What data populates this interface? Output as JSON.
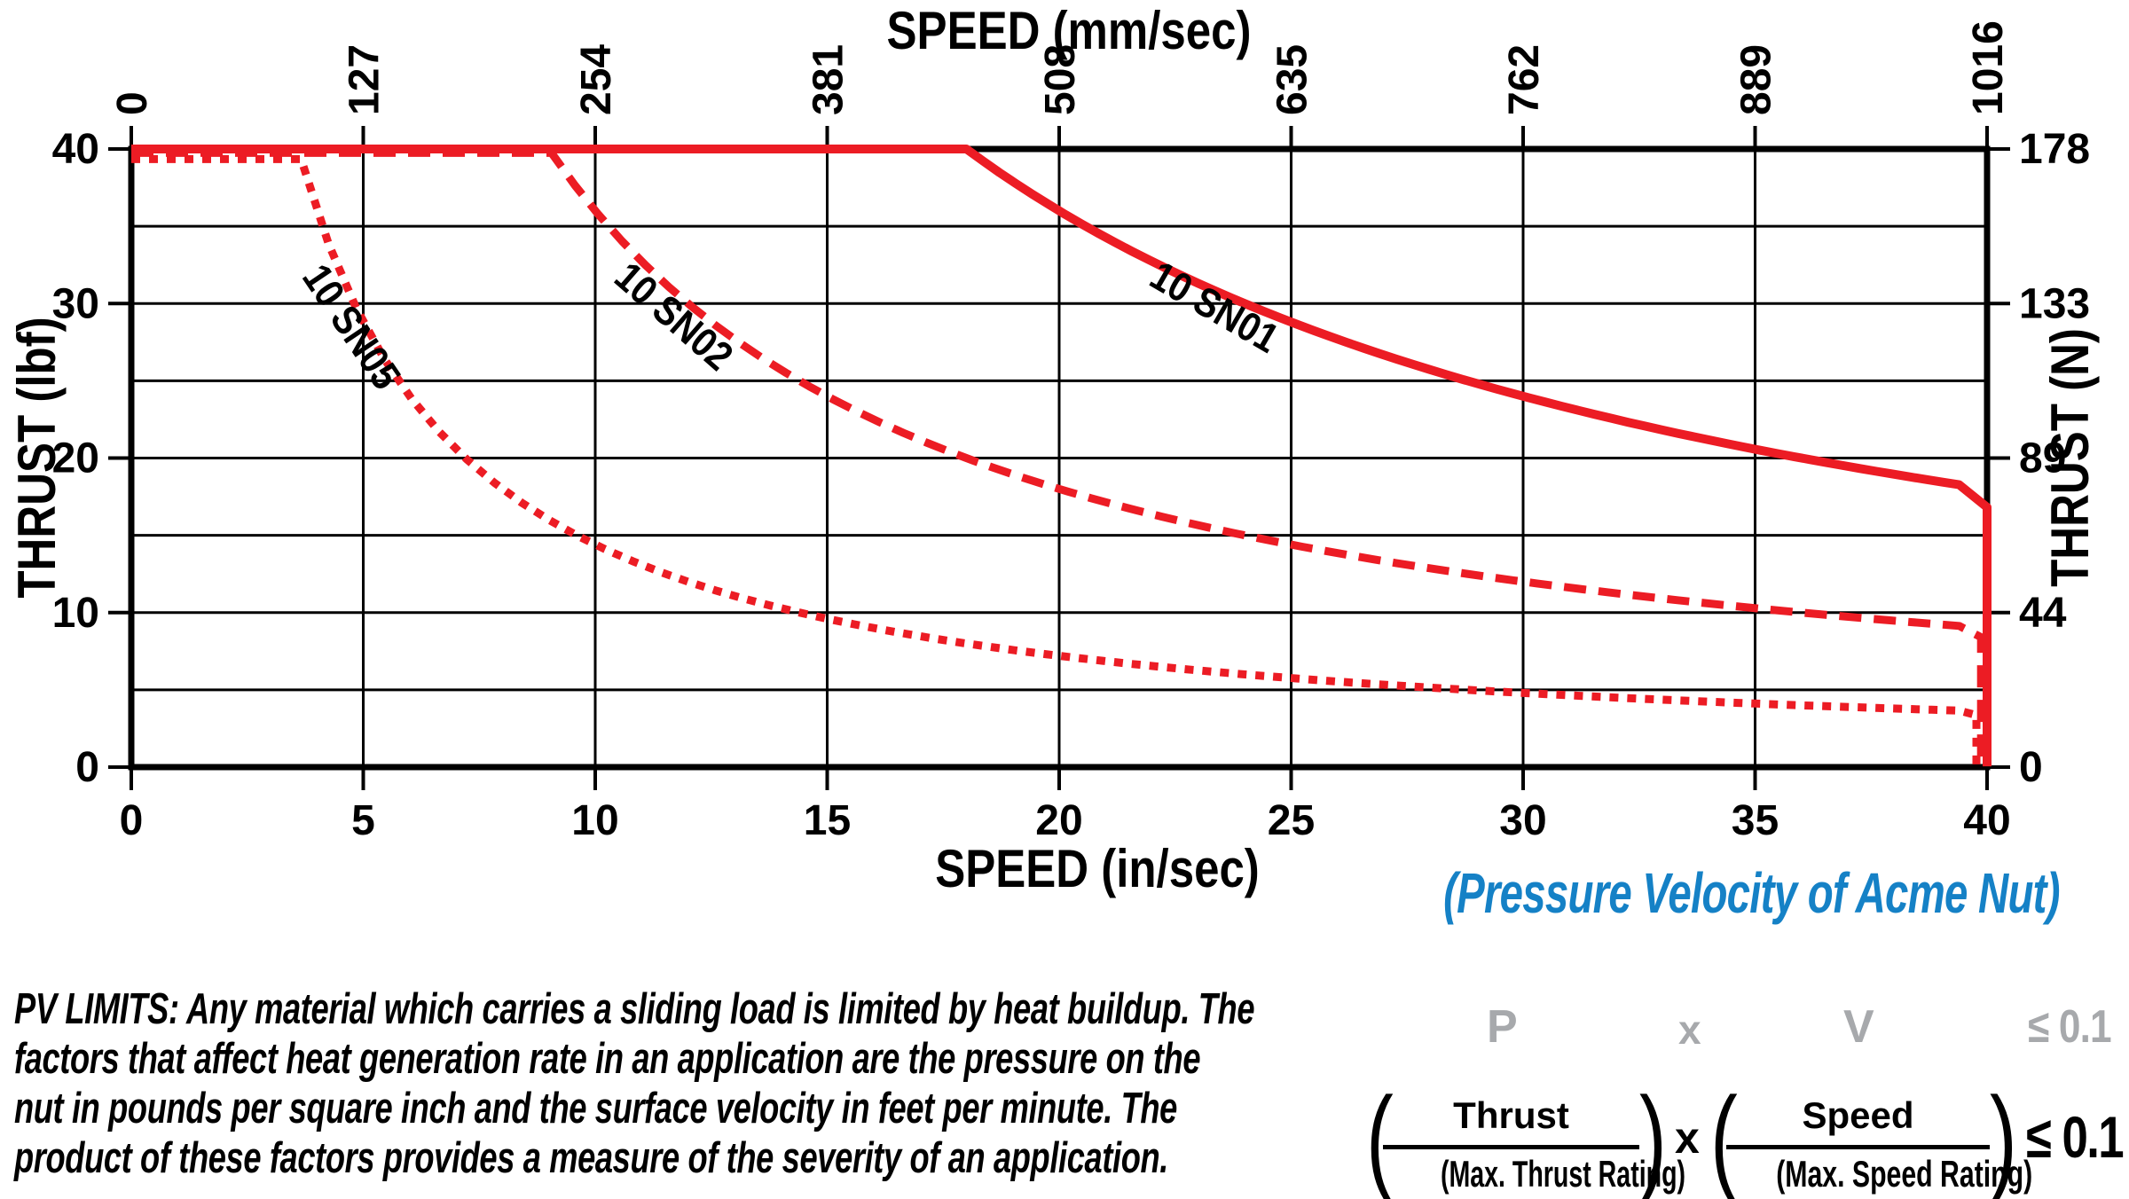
{
  "chart_data": {
    "type": "line",
    "title_top_axis": "SPEED (mm/sec)",
    "xlabel_bottom": "SPEED (in/sec)",
    "ylabel_left": "THRUST (lbf)",
    "ylabel_right": "THRUST (N)",
    "xlim": [
      0,
      40
    ],
    "ylim": [
      0,
      40
    ],
    "grid_step": 5,
    "grid": true,
    "x_bottom_ticks": [
      0,
      5,
      10,
      15,
      20,
      25,
      30,
      35,
      40
    ],
    "x_top_ticks": [
      0,
      127,
      254,
      381,
      508,
      635,
      762,
      889,
      1016
    ],
    "y_left_ticks": [
      0,
      10,
      20,
      30,
      40
    ],
    "y_right_ticks": [
      0,
      44,
      89,
      133,
      178
    ],
    "series": [
      {
        "name": "10 SN05",
        "line_style": "dotted",
        "max_thrust_lbf": 40,
        "max_speed_in_sec": 40,
        "corner_speed_in_sec": 3.6,
        "pv_constant": 144,
        "points_thrust_at_speed": {
          "3.6": 40,
          "5": 28.8,
          "10": 14.4,
          "15": 9.6,
          "20": 7.2,
          "25": 5.8,
          "30": 4.8,
          "35": 4.1,
          "40": 3.6
        },
        "label": {
          "text": "10 SN05",
          "speed": 4.5,
          "thrust": 28.0,
          "angle_deg": 56
        }
      },
      {
        "name": "10 SN02",
        "line_style": "dashed",
        "max_thrust_lbf": 40,
        "max_speed_in_sec": 40,
        "corner_speed_in_sec": 9,
        "pv_constant": 360,
        "points_thrust_at_speed": {
          "9": 40,
          "10": 36,
          "15": 24,
          "20": 18,
          "25": 14.4,
          "30": 12,
          "35": 10.3,
          "40": 9
        },
        "label": {
          "text": "10 SN02",
          "speed": 11.5,
          "thrust": 28.5,
          "angle_deg": 41
        }
      },
      {
        "name": "10 SN01",
        "line_style": "solid",
        "max_thrust_lbf": 40,
        "max_speed_in_sec": 40,
        "corner_speed_in_sec": 18,
        "pv_constant": 720,
        "points_thrust_at_speed": {
          "18": 40,
          "20": 36,
          "25": 28.8,
          "30": 24,
          "35": 20.6,
          "40": 18
        },
        "label": {
          "text": "10 SN01",
          "speed": 23.2,
          "thrust": 29.0,
          "angle_deg": 30
        }
      }
    ],
    "colors": {
      "curve_red": "#EC1C24",
      "grid_black": "#000000"
    }
  },
  "caption": "(Pressure Velocity of Acme Nut)",
  "caption_color": "#1581C6",
  "paragraph": {
    "lines": [
      "PV LIMITS: Any material which carries a sliding load is limited by heat buildup. The",
      "factors that affect heat generation rate in an application are the pressure on the",
      "nut in pounds per square inch and the surface velocity in feet per minute. The",
      "product of these factors provides a measure of the severity of an application."
    ]
  },
  "formula": {
    "top": {
      "p": "P",
      "x": "x",
      "v": "V",
      "leq": "≤ 0.1"
    },
    "paren_open": "(",
    "paren_close": ")",
    "thrust_num": "Thrust",
    "thrust_den": "(Max. Thrust Rating)",
    "x": "x",
    "speed_num": "Speed",
    "speed_den": "(Max. Speed Rating)",
    "leq": "≤ 0.1",
    "gray_color": "#A7A9AC"
  }
}
